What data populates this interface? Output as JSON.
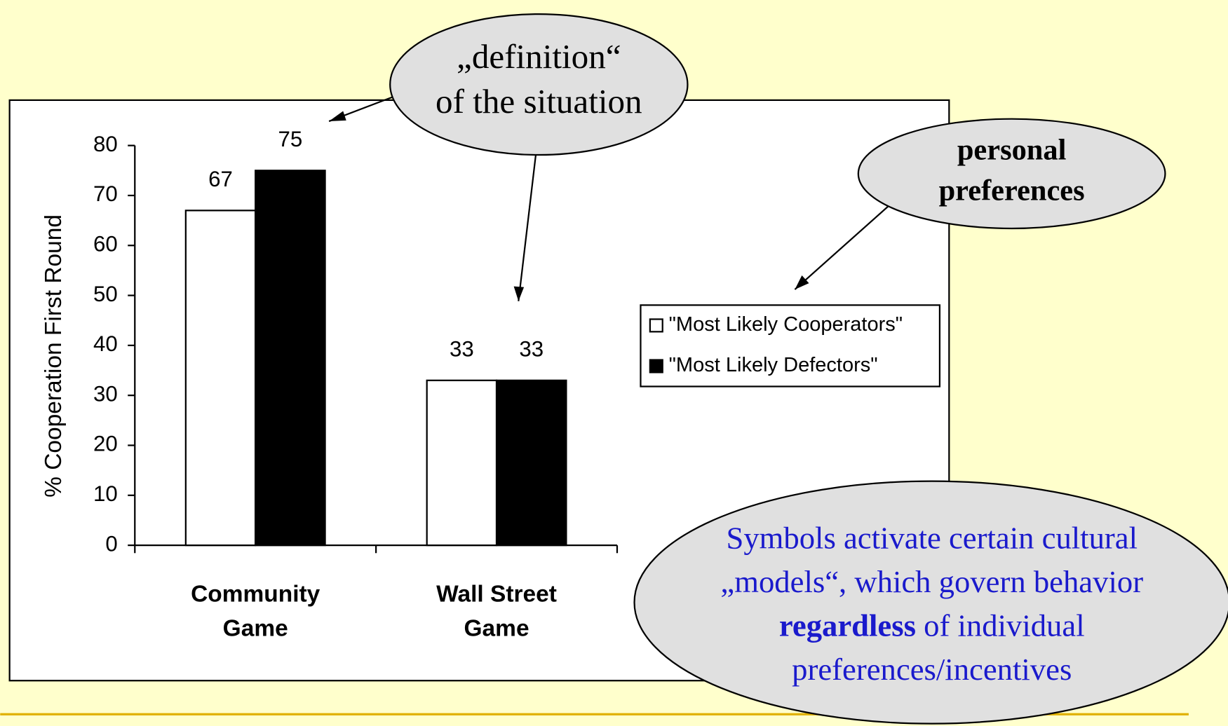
{
  "chart_data": {
    "type": "bar",
    "ylabel": "% Cooperation First Round",
    "categories": [
      "Community Game",
      "Wall Street Game"
    ],
    "series": [
      {
        "name": "\"Most Likely Cooperators\"",
        "color": "#ffffff",
        "values": [
          67,
          33
        ]
      },
      {
        "name": "\"Most Likely Defectors\"",
        "color": "#000000",
        "values": [
          75,
          33
        ]
      }
    ],
    "ylim": [
      0,
      80
    ],
    "yticks": [
      0,
      10,
      20,
      30,
      40,
      50,
      60,
      70,
      80
    ],
    "annotations": [
      {
        "lines": [
          "„definition“",
          "of the situation"
        ]
      },
      {
        "lines": [
          "personal",
          "preferences"
        ]
      },
      {
        "parts": [
          "Symbols activate certain cultural „models“, which govern behavior ",
          "regardless",
          " of individual preferences/incentives"
        ]
      }
    ]
  }
}
